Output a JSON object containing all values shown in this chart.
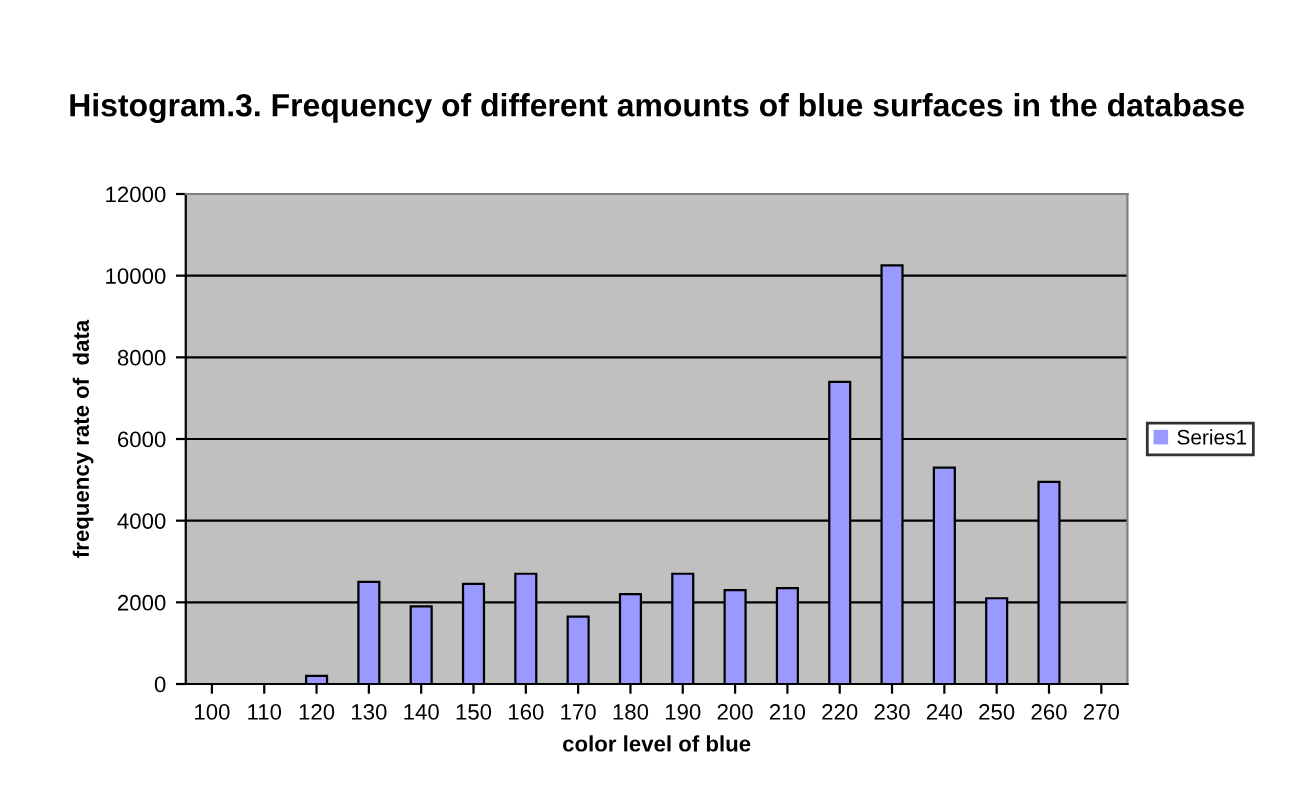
{
  "chart_data": {
    "type": "bar",
    "title": "Histogram.3. Frequency of different amounts of blue surfaces in the database",
    "xlabel": "color level of blue",
    "ylabel": "frequency rate of  data",
    "categories": [
      "100",
      "110",
      "120",
      "130",
      "140",
      "150",
      "160",
      "170",
      "180",
      "190",
      "200",
      "210",
      "220",
      "230",
      "240",
      "250",
      "260",
      "270"
    ],
    "series": [
      {
        "name": "Series1",
        "color": "#9999ff",
        "values": [
          0,
          0,
          200,
          2500,
          1900,
          2450,
          2700,
          1650,
          2200,
          2700,
          2300,
          2350,
          7400,
          10250,
          5300,
          2100,
          4950,
          0
        ]
      }
    ],
    "ylim": [
      0,
      12000
    ],
    "yticks": [
      0,
      2000,
      4000,
      6000,
      8000,
      10000,
      12000
    ],
    "grid": "y",
    "legend": "right"
  }
}
